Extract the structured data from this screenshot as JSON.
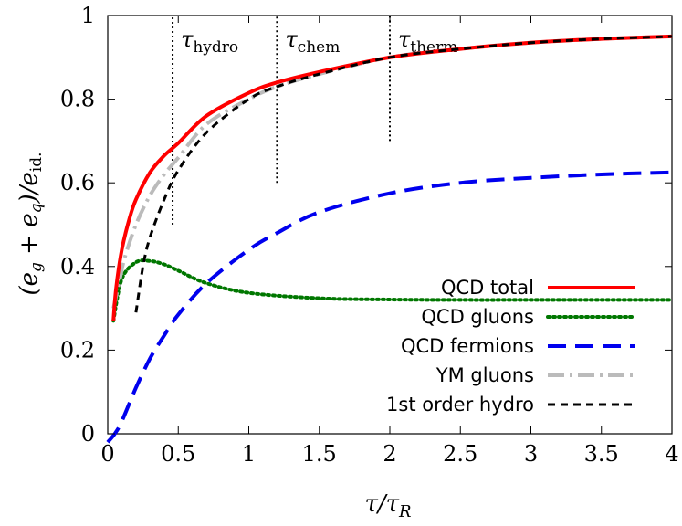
{
  "chart_data": {
    "type": "line",
    "title": "",
    "xlabel": "τ/τR",
    "ylabel": "(eg + eq)/eid.",
    "xlim": [
      0,
      4
    ],
    "ylim": [
      0,
      1
    ],
    "x_ticks": [
      "0",
      "0.5",
      "1",
      "1.5",
      "2",
      "2.5",
      "3",
      "3.5",
      "4"
    ],
    "y_ticks": [
      "0",
      "0.2",
      "0.4",
      "0.6",
      "0.8",
      "1"
    ],
    "legend_position": "bottom-right",
    "annotations": [
      {
        "label": "τhydro",
        "x": 0.46,
        "y_range": [
          0.5,
          1.0
        ]
      },
      {
        "label": "τchem",
        "x": 1.2,
        "y_range": [
          0.6,
          1.0
        ]
      },
      {
        "label": "τtherm",
        "x": 2.0,
        "y_range": [
          0.7,
          1.0
        ]
      }
    ],
    "series": [
      {
        "name": "QCD total",
        "color": "#ff0000",
        "style": "solid",
        "x": [
          0.04,
          0.06,
          0.1,
          0.15,
          0.2,
          0.3,
          0.4,
          0.5,
          0.7,
          1.0,
          1.2,
          1.5,
          2.0,
          2.5,
          3.0,
          3.5,
          4.0
        ],
        "y": [
          0.27,
          0.35,
          0.44,
          0.51,
          0.56,
          0.625,
          0.665,
          0.695,
          0.76,
          0.815,
          0.84,
          0.865,
          0.9,
          0.92,
          0.935,
          0.944,
          0.95
        ]
      },
      {
        "name": "QCD gluons",
        "color": "#007700",
        "style": "dotted",
        "x": [
          0.04,
          0.1,
          0.2,
          0.3,
          0.4,
          0.5,
          0.7,
          1.0,
          1.5,
          2.0,
          2.5,
          3.0,
          3.5,
          4.0
        ],
        "y": [
          0.27,
          0.37,
          0.41,
          0.413,
          0.405,
          0.39,
          0.36,
          0.337,
          0.324,
          0.321,
          0.32,
          0.32,
          0.32,
          0.32
        ]
      },
      {
        "name": "QCD fermions",
        "color": "#0000ee",
        "style": "dashed",
        "x": [
          0.0,
          0.05,
          0.1,
          0.2,
          0.3,
          0.4,
          0.5,
          0.7,
          1.0,
          1.2,
          1.5,
          2.0,
          2.5,
          3.0,
          3.5,
          4.0
        ],
        "y": [
          -0.02,
          0.0,
          0.03,
          0.11,
          0.18,
          0.235,
          0.285,
          0.36,
          0.44,
          0.48,
          0.53,
          0.575,
          0.6,
          0.612,
          0.62,
          0.625
        ]
      },
      {
        "name": "YM gluons",
        "color": "#bbbbbb",
        "style": "dashdot",
        "x": [
          0.04,
          0.08,
          0.12,
          0.2,
          0.3,
          0.4,
          0.5,
          0.7,
          1.0,
          1.2,
          1.5,
          2.0,
          2.5,
          3.0,
          3.5,
          4.0
        ],
        "y": [
          0.3,
          0.36,
          0.42,
          0.5,
          0.57,
          0.62,
          0.66,
          0.74,
          0.8,
          0.83,
          0.86,
          0.9,
          0.92,
          0.935,
          0.944,
          0.95
        ]
      },
      {
        "name": "1st order hydro",
        "color": "#000000",
        "style": "shortdash",
        "x": [
          0.2,
          0.25,
          0.3,
          0.4,
          0.5,
          0.7,
          1.0,
          1.2,
          1.5,
          2.0,
          2.5,
          3.0,
          3.5,
          4.0
        ],
        "y": [
          0.29,
          0.4,
          0.47,
          0.56,
          0.63,
          0.72,
          0.8,
          0.83,
          0.86,
          0.9,
          0.92,
          0.935,
          0.944,
          0.95
        ]
      }
    ]
  }
}
